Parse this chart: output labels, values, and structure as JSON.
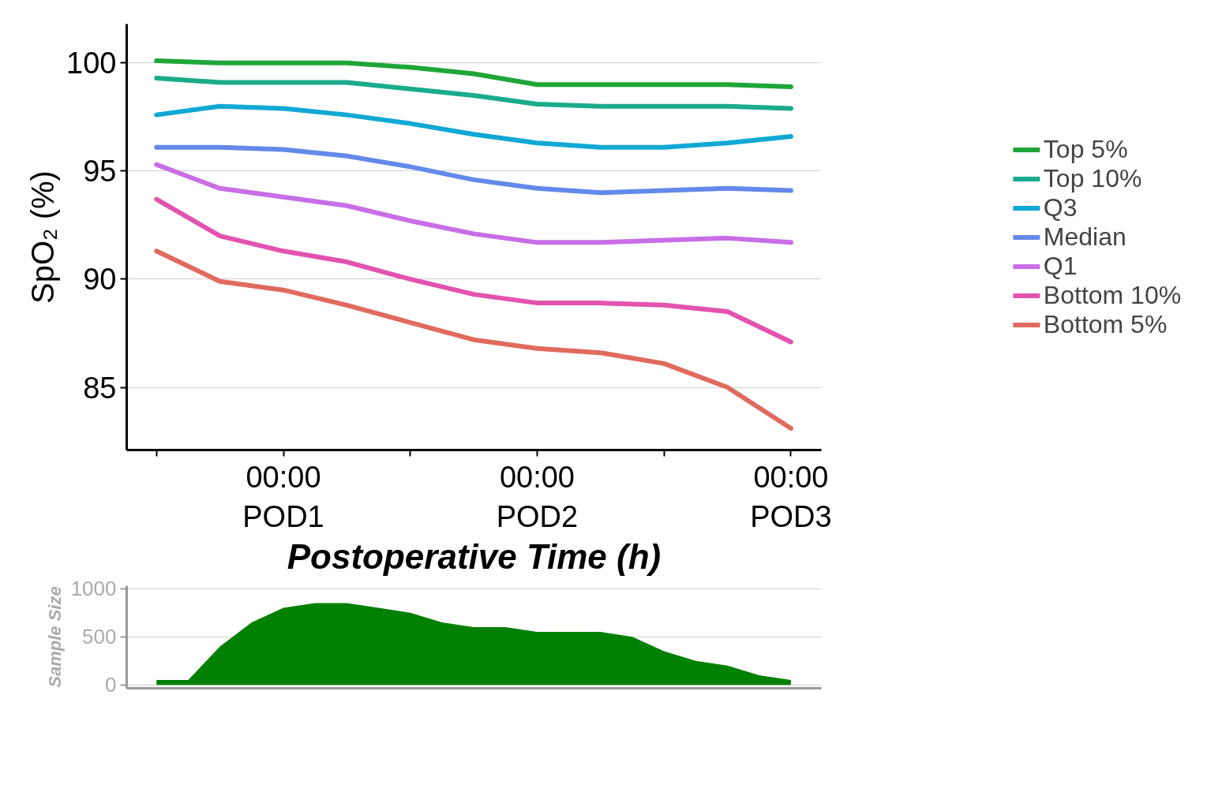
{
  "chart_data": [
    {
      "type": "line",
      "xlabel": "Postoperative Time (h)",
      "ylabel": "SpO₂ (%)",
      "categories": [
        null,
        null,
        "00:00\nPOD1",
        null,
        null,
        null,
        "00:00\nPOD2",
        null,
        null,
        null,
        "00:00\nPOD3"
      ],
      "series": [
        {
          "name": "Top 5%",
          "color": "#1fa637",
          "values": [
            100.1,
            100.0,
            100.0,
            100.0,
            99.8,
            99.5,
            99.0,
            99.0,
            99.0,
            99.0,
            98.9
          ]
        },
        {
          "name": "Top 10%",
          "color": "#1aab8c",
          "values": [
            99.3,
            99.1,
            99.1,
            99.1,
            98.8,
            98.5,
            98.1,
            98.0,
            98.0,
            98.0,
            97.9
          ]
        },
        {
          "name": "Q3",
          "color": "#11a8d4",
          "values": [
            97.6,
            98.0,
            97.9,
            97.6,
            97.2,
            96.7,
            96.3,
            96.1,
            96.1,
            96.3,
            96.6
          ]
        },
        {
          "name": "Median",
          "color": "#6389ea",
          "values": [
            96.1,
            96.1,
            96.0,
            95.7,
            95.2,
            94.6,
            94.2,
            94.0,
            94.1,
            94.2,
            94.1
          ]
        },
        {
          "name": "Q1",
          "color": "#c86ee6",
          "values": [
            95.3,
            94.2,
            93.8,
            93.4,
            92.7,
            92.1,
            91.7,
            91.7,
            91.8,
            91.9,
            91.7
          ]
        },
        {
          "name": "Bottom 10%",
          "color": "#e253b0",
          "values": [
            93.7,
            92.0,
            91.3,
            90.8,
            90.0,
            89.3,
            88.9,
            88.9,
            88.8,
            88.5,
            87.1
          ]
        },
        {
          "name": "Bottom 5%",
          "color": "#e06a5e",
          "values": [
            91.3,
            89.9,
            89.5,
            88.8,
            88.0,
            87.2,
            86.8,
            86.6,
            86.1,
            85.0,
            83.1
          ]
        }
      ],
      "ylim": [
        82.1,
        101.8
      ],
      "yticks": [
        85,
        90,
        95,
        100
      ],
      "grid": "y",
      "legend": "right"
    },
    {
      "type": "area",
      "ylabel": "Sample Size",
      "categories": [
        null,
        null,
        null,
        null,
        null,
        null,
        null,
        null,
        null,
        null,
        null,
        null,
        null,
        null,
        null,
        null,
        null,
        null,
        null,
        null,
        null
      ],
      "series": [
        {
          "color": "#008000",
          "values": [
            50,
            50,
            400,
            650,
            800,
            850,
            850,
            800,
            750,
            650,
            600,
            600,
            550,
            550,
            550,
            500,
            350,
            250,
            200,
            100,
            50
          ]
        }
      ],
      "ylim": [
        -35,
        1030
      ],
      "yticks": [
        0,
        500,
        1000
      ],
      "grid": "y"
    }
  ]
}
